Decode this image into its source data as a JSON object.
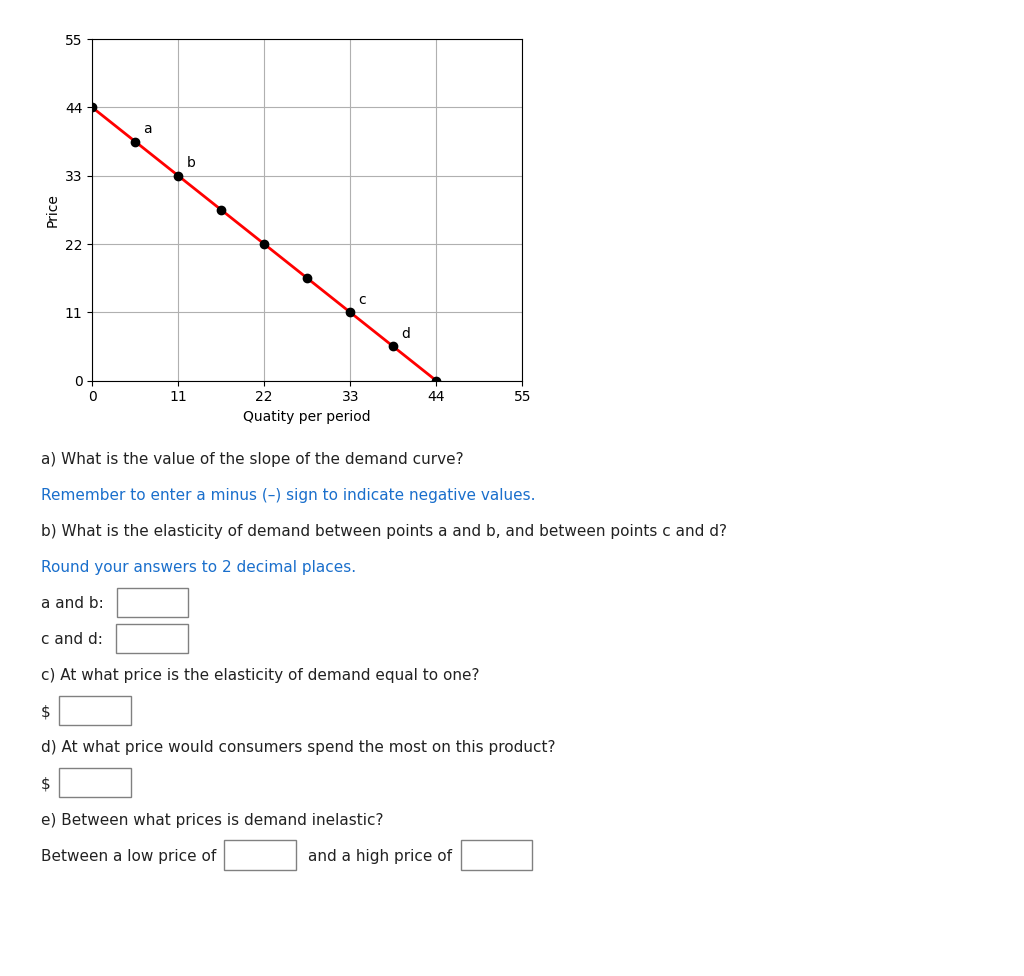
{
  "chart_data": {
    "type": "line",
    "xlabel": "Quatity per period",
    "ylabel": "Price",
    "xlim": [
      0,
      55
    ],
    "ylim": [
      0,
      55
    ],
    "xticks": [
      0,
      11,
      22,
      33,
      44,
      55
    ],
    "yticks": [
      0,
      11,
      22,
      33,
      44,
      55
    ],
    "grid": true,
    "series": [
      {
        "type": "line",
        "color": "#FF0000",
        "x": [
          0,
          44
        ],
        "values": [
          44,
          0
        ]
      },
      {
        "type": "scatter",
        "color": "#000000",
        "x": [
          0,
          5.5,
          11,
          16.5,
          22,
          27.5,
          33,
          38.5,
          44
        ],
        "values": [
          44,
          38.5,
          33,
          27.5,
          22,
          16.5,
          11,
          5.5,
          0
        ],
        "point_labels": [
          null,
          "a",
          "b",
          null,
          null,
          null,
          "c",
          "d",
          null
        ]
      }
    ],
    "annotations": [
      {
        "text": [
          "a) What is the value of the slope of the demand curve? "
        ],
        "color": "#222222"
      },
      {
        "text": [
          "Remember to enter a minus (–) sign to indicate negative values."
        ],
        "color": "#1a6fcc"
      },
      {
        "text": [
          "b) What is the elasticity of demand between points a and b, and between points c and d? "
        ],
        "color": "#222222"
      },
      {
        "text": [
          "Round your answers to 2 decimal places."
        ],
        "color": "#1a6fcc"
      },
      {
        "text": [
          "a and b: "
        ],
        "color": "#222222"
      },
      {
        "text": [
          "c and d: "
        ],
        "color": "#222222"
      },
      {
        "text": [
          "c) At what price is the elasticity of demand equal to one?"
        ],
        "color": "#222222"
      },
      {
        "text": [
          "$"
        ],
        "color": "#222222"
      },
      {
        "text": [
          "d) At what price would consumers spend the most on this product?"
        ],
        "color": "#222222"
      },
      {
        "text": [
          "$"
        ],
        "color": "#222222"
      },
      {
        "text": [
          "e) Between what prices is demand inelastic?"
        ],
        "color": "#222222"
      },
      {
        "text": [
          "Between a low price of",
          "and a high price of"
        ],
        "color": "#222222"
      }
    ]
  }
}
